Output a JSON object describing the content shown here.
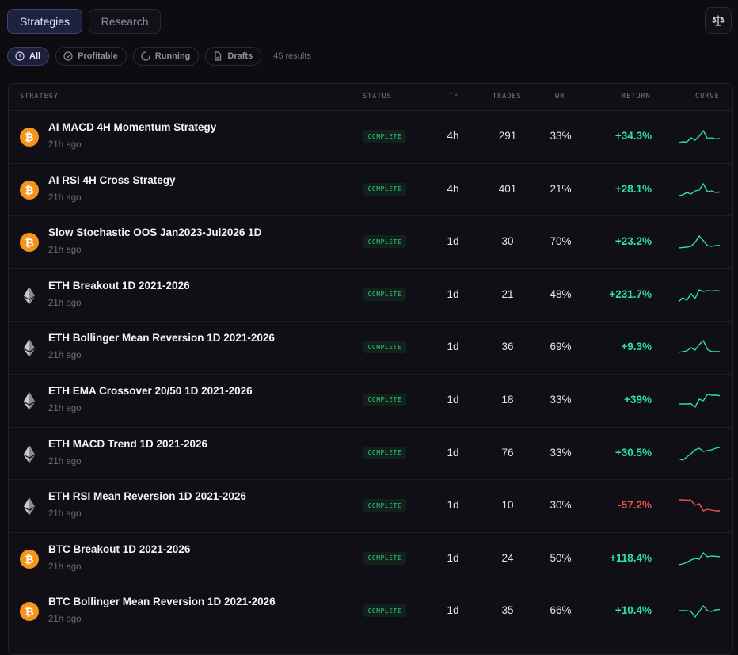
{
  "tabs": [
    {
      "label": "Strategies",
      "active": true
    },
    {
      "label": "Research",
      "active": false
    }
  ],
  "toolbar": {
    "compare_icon": "scale-icon"
  },
  "filters": [
    {
      "label": "All",
      "icon": "clock-icon",
      "active": true
    },
    {
      "label": "Profitable",
      "icon": "check-circle-icon",
      "active": false
    },
    {
      "label": "Running",
      "icon": "spinner-icon",
      "active": false
    },
    {
      "label": "Drafts",
      "icon": "file-icon",
      "active": false
    }
  ],
  "results_label": "45 results",
  "table": {
    "columns": [
      "STRATEGY",
      "STATUS",
      "TF",
      "TRADES",
      "WR",
      "RETURN",
      "CURVE"
    ],
    "rows": [
      {
        "coin": "BTC",
        "name": "AI MACD 4H Momentum Strategy",
        "time": "21h ago",
        "status": "COMPLETE",
        "tf": "4h",
        "trades": "291",
        "wr": "33%",
        "ret": "+34.3%",
        "trend": "positive",
        "curve": [
          0.15,
          0.2,
          0.18,
          0.45,
          0.3,
          0.55,
          0.9,
          0.4,
          0.45,
          0.38,
          0.4
        ]
      },
      {
        "coin": "BTC",
        "name": "AI RSI 4H Cross Strategy",
        "time": "21h ago",
        "status": "COMPLETE",
        "tf": "4h",
        "trades": "401",
        "wr": "21%",
        "ret": "+28.1%",
        "trend": "positive",
        "curve": [
          0.15,
          0.2,
          0.35,
          0.25,
          0.45,
          0.5,
          0.9,
          0.4,
          0.45,
          0.35,
          0.38
        ]
      },
      {
        "coin": "BTC",
        "name": "Slow Stochastic OOS Jan2023-Jul2026 1D",
        "time": "21h ago",
        "status": "COMPLETE",
        "tf": "1d",
        "trades": "30",
        "wr": "70%",
        "ret": "+23.2%",
        "trend": "positive",
        "curve": [
          0.15,
          0.18,
          0.2,
          0.25,
          0.5,
          0.9,
          0.6,
          0.3,
          0.25,
          0.3,
          0.3
        ]
      },
      {
        "coin": "ETH",
        "name": "ETH Breakout 1D 2021-2026",
        "time": "21h ago",
        "status": "COMPLETE",
        "tf": "1d",
        "trades": "21",
        "wr": "48%",
        "ret": "+231.7%",
        "trend": "positive",
        "curve": [
          0.1,
          0.35,
          0.2,
          0.6,
          0.3,
          0.85,
          0.75,
          0.8,
          0.78,
          0.8,
          0.78
        ]
      },
      {
        "coin": "ETH",
        "name": "ETH Bollinger Mean Reversion 1D 2021-2026",
        "time": "21h ago",
        "status": "COMPLETE",
        "tf": "1d",
        "trades": "36",
        "wr": "69%",
        "ret": "+9.3%",
        "trend": "positive",
        "curve": [
          0.2,
          0.25,
          0.3,
          0.5,
          0.35,
          0.7,
          0.95,
          0.4,
          0.25,
          0.25,
          0.25
        ]
      },
      {
        "coin": "ETH",
        "name": "ETH EMA Crossover 20/50 1D 2021-2026",
        "time": "21h ago",
        "status": "COMPLETE",
        "tf": "1d",
        "trades": "18",
        "wr": "33%",
        "ret": "+39%",
        "trend": "positive",
        "curve": [
          0.3,
          0.3,
          0.3,
          0.32,
          0.1,
          0.6,
          0.5,
          0.9,
          0.85,
          0.85,
          0.82
        ]
      },
      {
        "coin": "ETH",
        "name": "ETH MACD Trend 1D 2021-2026",
        "time": "21h ago",
        "status": "COMPLETE",
        "tf": "1d",
        "trades": "76",
        "wr": "33%",
        "ret": "+30.5%",
        "trend": "positive",
        "curve": [
          0.2,
          0.1,
          0.3,
          0.5,
          0.75,
          0.85,
          0.65,
          0.7,
          0.75,
          0.85,
          0.9
        ]
      },
      {
        "coin": "ETH",
        "name": "ETH RSI Mean Reversion 1D 2021-2026",
        "time": "21h ago",
        "status": "COMPLETE",
        "tf": "1d",
        "trades": "10",
        "wr": "30%",
        "ret": "-57.2%",
        "trend": "negative",
        "curve": [
          0.9,
          0.9,
          0.88,
          0.88,
          0.55,
          0.65,
          0.2,
          0.3,
          0.25,
          0.2,
          0.2
        ]
      },
      {
        "coin": "BTC",
        "name": "BTC Breakout 1D 2021-2026",
        "time": "21h ago",
        "status": "COMPLETE",
        "tf": "1d",
        "trades": "24",
        "wr": "50%",
        "ret": "+118.4%",
        "trend": "positive",
        "curve": [
          0.15,
          0.2,
          0.3,
          0.45,
          0.55,
          0.5,
          0.9,
          0.65,
          0.7,
          0.68,
          0.66
        ]
      },
      {
        "coin": "BTC",
        "name": "BTC Bollinger Mean Reversion 1D 2021-2026",
        "time": "21h ago",
        "status": "COMPLETE",
        "tf": "1d",
        "trades": "35",
        "wr": "66%",
        "ret": "+10.4%",
        "trend": "positive",
        "curve": [
          0.55,
          0.55,
          0.55,
          0.5,
          0.15,
          0.5,
          0.85,
          0.55,
          0.5,
          0.6,
          0.62
        ]
      }
    ]
  },
  "colors": {
    "positive": "#2fe0a9",
    "negative": "#f0524a",
    "btc": "#f7931a",
    "accent": "#3d4278"
  }
}
